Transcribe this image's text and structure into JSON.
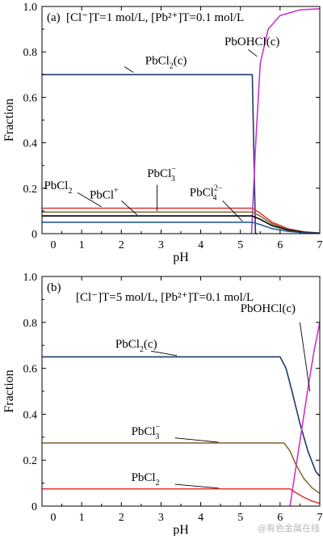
{
  "watermark": "@有色金属在线",
  "chart_data": [
    {
      "type": "line",
      "panel_label": "(a)",
      "conditions": "[Cl⁻]T=1 mol/L, [Pb²⁺]T=0.1 mol/L",
      "xlabel": "pH",
      "ylabel": "Fraction",
      "xlim": [
        0,
        7
      ],
      "ylim": [
        0,
        1.0
      ],
      "xticks": [
        "0",
        "1",
        "2",
        "3",
        "4",
        "5",
        "6",
        "7"
      ],
      "yticks": [
        "0",
        "0.2",
        "0.4",
        "0.6",
        "0.8",
        "1.0"
      ],
      "series": [
        {
          "name": "PbCl2(c)",
          "color": "#1f3a6e",
          "x": [
            0,
            5.28,
            5.3,
            5.38,
            5.42
          ],
          "y": [
            0.7,
            0.7,
            0.7,
            0.0,
            0.0
          ]
        },
        {
          "name": "PbOHCl(c)",
          "color": "#cc33cc",
          "x": [
            5.28,
            5.38,
            5.5,
            5.7,
            6.0,
            6.5,
            7.0
          ],
          "y": [
            0.0,
            0.38,
            0.75,
            0.9,
            0.96,
            0.985,
            0.99
          ]
        },
        {
          "name": "PbCl2",
          "color": "#e03c3c",
          "x": [
            0,
            5.3,
            5.5,
            5.8,
            6.2,
            6.6,
            7.0
          ],
          "y": [
            0.112,
            0.112,
            0.09,
            0.05,
            0.022,
            0.008,
            0.003
          ]
        },
        {
          "name": "PbCl3-",
          "color": "#8a6e3a",
          "x": [
            0,
            5.3,
            5.5,
            5.8,
            6.2,
            6.6,
            7.0
          ],
          "y": [
            0.095,
            0.095,
            0.077,
            0.043,
            0.019,
            0.007,
            0.002
          ]
        },
        {
          "name": "PbCl+",
          "color": "#000000",
          "x": [
            0,
            5.3,
            5.5,
            5.8,
            6.2,
            6.6,
            7.0
          ],
          "y": [
            0.078,
            0.078,
            0.063,
            0.035,
            0.016,
            0.006,
            0.002
          ]
        },
        {
          "name": "PbCl4 2-",
          "color": "#2a5c9a",
          "x": [
            0,
            5.3,
            5.5,
            5.8,
            6.2,
            6.6,
            7.0
          ],
          "y": [
            0.05,
            0.05,
            0.04,
            0.022,
            0.01,
            0.004,
            0.001
          ]
        }
      ],
      "annotations": [
        {
          "text": "PbCl2(c)",
          "base": "PbCl",
          "sub": "2",
          "sup": "",
          "tail": "(c)",
          "x": 2.6,
          "y": 0.745,
          "px": 2.3,
          "py": 0.71,
          "lx": 2.08,
          "ly": 0.735
        },
        {
          "text": "PbOHCl(c)",
          "base": "PbOHCl(c)",
          "sub": "",
          "sup": "",
          "tail": "",
          "x": 4.6,
          "y": 0.83,
          "px": 5.42,
          "py": 0.78,
          "lx": 5.2,
          "ly": 0.81
        },
        {
          "text": "PbCl2",
          "base": "PbCl",
          "sub": "2",
          "sup": "",
          "tail": "",
          "x": 0.05,
          "y": 0.195,
          "px": 1.5,
          "py": 0.118,
          "lx": 0.9,
          "ly": 0.18
        },
        {
          "text": "PbCl3-",
          "base": "PbCl",
          "sub": "3",
          "sup": "−",
          "tail": "",
          "x": 2.65,
          "y": 0.25,
          "px": 2.9,
          "py": 0.1,
          "lx": 2.9,
          "ly": 0.215
        },
        {
          "text": "PbCl+",
          "base": "PbCl",
          "sup": "+",
          "sub": "",
          "tail": "",
          "x": 1.2,
          "y": 0.155,
          "px": 2.4,
          "py": 0.082,
          "lx": 2.0,
          "ly": 0.145
        },
        {
          "text": "PbCl4 2-",
          "base": "PbCl",
          "sub": "4",
          "sup": "2−",
          "tail": "",
          "x": 3.72,
          "y": 0.165,
          "px": 5.05,
          "py": 0.055,
          "lx": 4.55,
          "ly": 0.145
        }
      ]
    },
    {
      "type": "line",
      "panel_label": "(b)",
      "conditions": "[Cl⁻]T=5 mol/L, [Pb²⁺]T=0.1 mol/L",
      "xlabel": "pH",
      "ylabel": "Fraction",
      "xlim": [
        0,
        7
      ],
      "ylim": [
        0,
        1.0
      ],
      "xticks": [
        "0",
        "1",
        "2",
        "3",
        "4",
        "5",
        "6",
        "7"
      ],
      "yticks": [
        "0",
        "0.2",
        "0.4",
        "0.6",
        "0.8",
        "1.0"
      ],
      "series": [
        {
          "name": "PbCl2(c)",
          "color": "#1f3a6e",
          "x": [
            0,
            3,
            6.0,
            6.15,
            6.3,
            6.5,
            6.7,
            6.9,
            7.0
          ],
          "y": [
            0.65,
            0.65,
            0.65,
            0.6,
            0.5,
            0.36,
            0.24,
            0.15,
            0.13
          ]
        },
        {
          "name": "PbOHCl(c)",
          "color": "#cc33cc",
          "x": [
            6.25,
            6.4,
            6.55,
            6.7,
            6.85,
            7.0
          ],
          "y": [
            0.0,
            0.17,
            0.34,
            0.51,
            0.67,
            0.8
          ]
        },
        {
          "name": "PbCl3-",
          "color": "#8a6e3a",
          "x": [
            0,
            3,
            6.1,
            6.25,
            6.4,
            6.6,
            6.8,
            7.0
          ],
          "y": [
            0.275,
            0.275,
            0.275,
            0.24,
            0.18,
            0.12,
            0.08,
            0.055
          ]
        },
        {
          "name": "PbCl2",
          "color": "#e03c3c",
          "x": [
            0,
            3,
            6.25,
            6.4,
            6.6,
            6.8,
            7.0
          ],
          "y": [
            0.075,
            0.075,
            0.075,
            0.058,
            0.038,
            0.022,
            0.012
          ]
        }
      ],
      "annotations": [
        {
          "text": "PbCl2(c)",
          "base": "PbCl",
          "sub": "2",
          "sup": "",
          "tail": "(c)",
          "x": 1.85,
          "y": 0.69,
          "px": 3.4,
          "py": 0.655,
          "lx": 2.75,
          "ly": 0.675
        },
        {
          "text": "PbOHCl(c)",
          "base": "PbOHCl(c)",
          "sub": "",
          "sup": "",
          "tail": "",
          "x": 5.0,
          "y": 0.845,
          "px": 6.75,
          "py": 0.5,
          "lx": 6.5,
          "ly": 0.8
        },
        {
          "text": "PbCl3-",
          "base": "PbCl",
          "sub": "3",
          "sup": "−",
          "tail": "",
          "x": 2.25,
          "y": 0.31,
          "px": 4.45,
          "py": 0.278,
          "lx": 3.35,
          "ly": 0.297
        },
        {
          "text": "PbCl2",
          "base": "PbCl",
          "sub": "2",
          "sup": "",
          "tail": "",
          "x": 2.25,
          "y": 0.11,
          "px": 4.45,
          "py": 0.078,
          "lx": 3.35,
          "ly": 0.095
        }
      ]
    }
  ]
}
